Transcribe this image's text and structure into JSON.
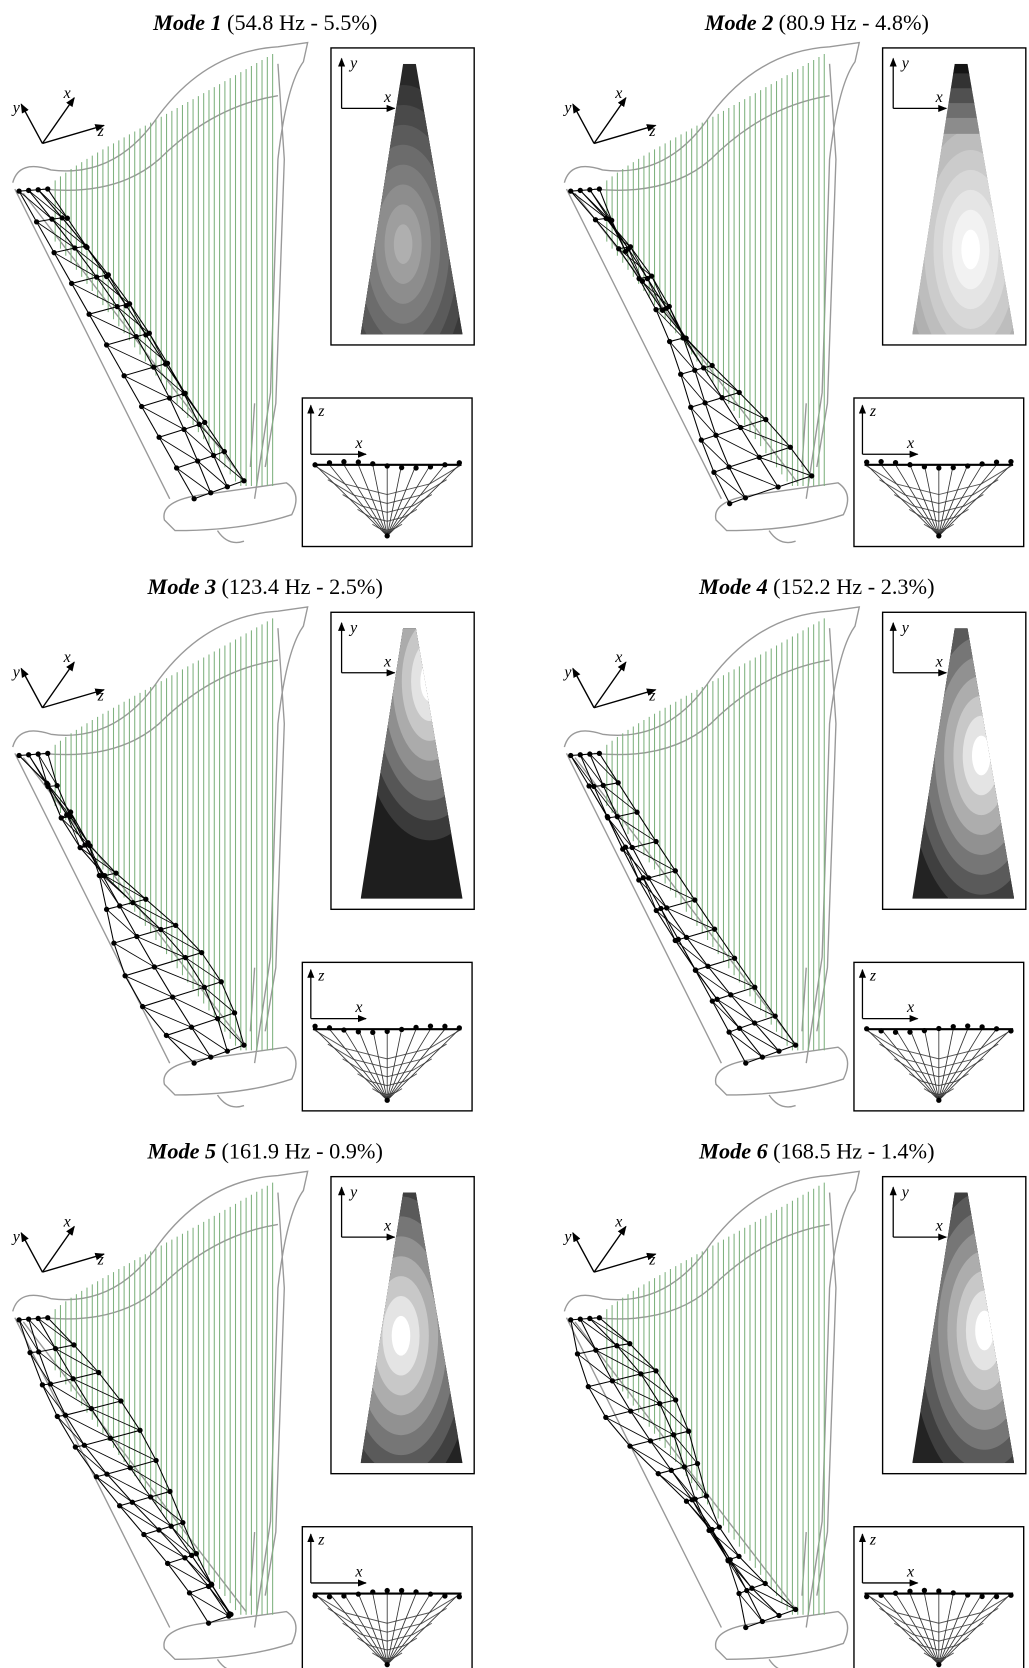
{
  "panels": [
    {
      "mode": "Mode 1",
      "detail": "(54.8 Hz - 5.5%)",
      "triad": {
        "y": "y",
        "x": "x",
        "z": "z"
      },
      "top_view": {
        "y": "y",
        "x": "x"
      },
      "side_view": {
        "z": "z",
        "x": "x"
      }
    },
    {
      "mode": "Mode 2",
      "detail": "(80.9 Hz - 4.8%)",
      "triad": {
        "y": "y",
        "x": "x",
        "z": "z"
      },
      "top_view": {
        "y": "y",
        "x": "x"
      },
      "side_view": {
        "z": "z",
        "x": "x"
      }
    },
    {
      "mode": "Mode 3",
      "detail": "(123.4 Hz - 2.5%)",
      "triad": {
        "y": "y",
        "x": "x",
        "z": "z"
      },
      "top_view": {
        "y": "y",
        "x": "x"
      },
      "side_view": {
        "z": "z",
        "x": "x"
      }
    },
    {
      "mode": "Mode 4",
      "detail": "(152.2 Hz - 2.3%)",
      "triad": {
        "y": "y",
        "x": "x",
        "z": "z"
      },
      "top_view": {
        "y": "y",
        "x": "x"
      },
      "side_view": {
        "z": "z",
        "x": "x"
      }
    },
    {
      "mode": "Mode 5",
      "detail": "(161.9 Hz - 0.9%)",
      "triad": {
        "y": "y",
        "x": "x",
        "z": "z"
      },
      "top_view": {
        "y": "y",
        "x": "x"
      },
      "side_view": {
        "z": "z",
        "x": "x"
      }
    },
    {
      "mode": "Mode 6",
      "detail": "(168.5 Hz - 1.4%)",
      "triad": {
        "y": "y",
        "x": "x",
        "z": "z"
      },
      "top_view": {
        "y": "y",
        "x": "x"
      },
      "side_view": {
        "z": "z",
        "x": "x"
      }
    }
  ]
}
